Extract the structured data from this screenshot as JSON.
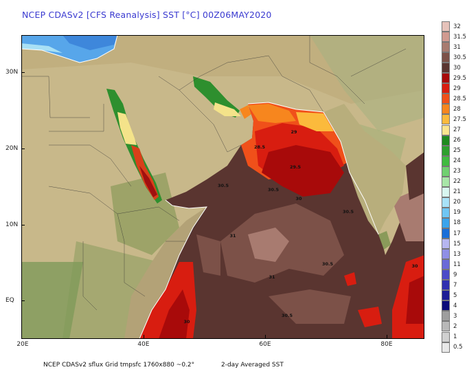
{
  "title": "NCEP CDASv2 [CFS Reanalysis] SST [°C] 00Z06MAY2020",
  "axes": {
    "lat_labels": [
      "30N",
      "20N",
      "10N",
      "EQ"
    ],
    "lon_labels": [
      "20E",
      "40E",
      "60E",
      "80E"
    ]
  },
  "contour_labels": [
    "29",
    "28.5",
    "29.5",
    "30.5",
    "30.5",
    "30",
    "30.5",
    "31",
    "31",
    "30.5",
    "30.5",
    "30",
    "30"
  ],
  "footer": {
    "left": "NCEP CDASv2 sflux Grid tmpsfc 1760x880 ~0.2°",
    "right": "2-day Averaged SST"
  },
  "colorbar": {
    "labels": [
      "32",
      "31.5",
      "31",
      "30.5",
      "30",
      "29.5",
      "29",
      "28.5",
      "28",
      "27.5",
      "27",
      "26",
      "25",
      "24",
      "23",
      "22",
      "21",
      "20",
      "19",
      "18",
      "17",
      "15",
      "13",
      "11",
      "9",
      "7",
      "5",
      "4",
      "3",
      "2",
      "1",
      "0.5"
    ],
    "colors": [
      "#e6c2ba",
      "#d09a90",
      "#a87b70",
      "#7c5148",
      "#5a3530",
      "#a80a0a",
      "#d81d10",
      "#f0501a",
      "#f7861e",
      "#fbba3c",
      "#fbe58e",
      "#1f8a1f",
      "#2ea02e",
      "#40bb40",
      "#70d070",
      "#a8e6a8",
      "#d8f6f0",
      "#a8e2f8",
      "#6fc6f4",
      "#3aa4ec",
      "#1a6fd8",
      "#b6b6f0",
      "#8f8fe6",
      "#6a6ad8",
      "#4a4ac8",
      "#3030b0",
      "#1e1e96",
      "#0c0c7a",
      "#9e9e9e",
      "#b8b8b8",
      "#d0d0d0",
      "#e8e8e8"
    ]
  }
}
